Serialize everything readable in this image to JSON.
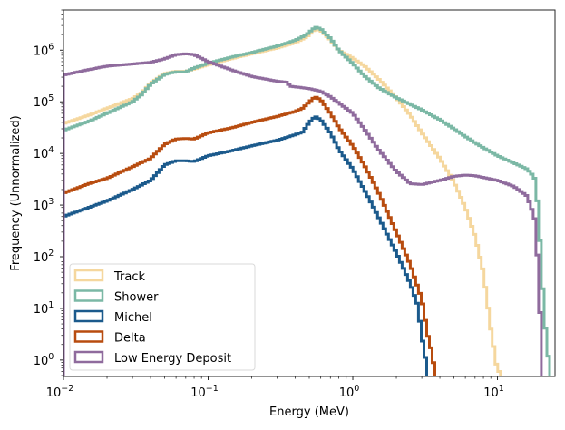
{
  "chart_data": {
    "type": "line",
    "subtype": "step-histogram",
    "title": "",
    "xlabel": "Energy (MeV)",
    "ylabel": "Frequency (Unnormalized)",
    "xscale": "log",
    "yscale": "log",
    "xlim": [
      0.01,
      25
    ],
    "ylim": [
      0.48,
      6000000
    ],
    "x_ticks": [
      {
        "value": 0.01,
        "label_base": "10",
        "label_exp": "−2"
      },
      {
        "value": 0.1,
        "label_base": "10",
        "label_exp": "−1"
      },
      {
        "value": 1,
        "label_base": "10",
        "label_exp": "0"
      },
      {
        "value": 10,
        "label_base": "10",
        "label_exp": "1"
      }
    ],
    "y_ticks": [
      {
        "value": 1,
        "label_base": "10",
        "label_exp": "0"
      },
      {
        "value": 10,
        "label_base": "10",
        "label_exp": "1"
      },
      {
        "value": 100,
        "label_base": "10",
        "label_exp": "2"
      },
      {
        "value": 1000,
        "label_base": "10",
        "label_exp": "3"
      },
      {
        "value": 10000,
        "label_base": "10",
        "label_exp": "4"
      },
      {
        "value": 100000,
        "label_base": "10",
        "label_exp": "5"
      },
      {
        "value": 1000000,
        "label_base": "10",
        "label_exp": "6"
      }
    ],
    "grid": false,
    "legend_position": "lower-left",
    "series": [
      {
        "name": "Track",
        "color": "#f5d79e",
        "points": [
          [
            0.01,
            38000
          ],
          [
            0.015,
            55000
          ],
          [
            0.02,
            75000
          ],
          [
            0.03,
            115000
          ],
          [
            0.035,
            150000
          ],
          [
            0.04,
            230000
          ],
          [
            0.05,
            350000
          ],
          [
            0.06,
            390000
          ],
          [
            0.07,
            390000
          ],
          [
            0.08,
            430000
          ],
          [
            0.1,
            520000
          ],
          [
            0.15,
            700000
          ],
          [
            0.2,
            850000
          ],
          [
            0.3,
            1100000
          ],
          [
            0.4,
            1400000
          ],
          [
            0.48,
            1800000
          ],
          [
            0.55,
            2600000
          ],
          [
            0.6,
            2400000
          ],
          [
            0.7,
            1600000
          ],
          [
            0.8,
            1000000
          ],
          [
            1.0,
            700000
          ],
          [
            1.2,
            500000
          ],
          [
            1.5,
            280000
          ],
          [
            2.0,
            120000
          ],
          [
            2.5,
            55000
          ],
          [
            3.0,
            25000
          ],
          [
            4.0,
            8000
          ],
          [
            5.0,
            2800
          ],
          [
            6.0,
            900
          ],
          [
            7.0,
            250
          ],
          [
            8.0,
            50
          ],
          [
            9.0,
            4
          ],
          [
            10.0,
            0.6
          ],
          [
            10.5,
            0.6
          ]
        ]
      },
      {
        "name": "Shower",
        "color": "#7bb8a5",
        "points": [
          [
            0.01,
            28000
          ],
          [
            0.015,
            42000
          ],
          [
            0.02,
            60000
          ],
          [
            0.03,
            100000
          ],
          [
            0.035,
            140000
          ],
          [
            0.04,
            220000
          ],
          [
            0.05,
            340000
          ],
          [
            0.06,
            380000
          ],
          [
            0.07,
            380000
          ],
          [
            0.08,
            450000
          ],
          [
            0.1,
            560000
          ],
          [
            0.15,
            750000
          ],
          [
            0.2,
            900000
          ],
          [
            0.3,
            1200000
          ],
          [
            0.4,
            1550000
          ],
          [
            0.48,
            2000000
          ],
          [
            0.55,
            2800000
          ],
          [
            0.6,
            2600000
          ],
          [
            0.7,
            1700000
          ],
          [
            0.8,
            1000000
          ],
          [
            1.0,
            550000
          ],
          [
            1.2,
            320000
          ],
          [
            1.5,
            190000
          ],
          [
            2.0,
            120000
          ],
          [
            3.0,
            70000
          ],
          [
            4.0,
            45000
          ],
          [
            5.0,
            30000
          ],
          [
            7.0,
            16000
          ],
          [
            10.0,
            9000
          ],
          [
            13.0,
            6500
          ],
          [
            16.0,
            5000
          ],
          [
            18.0,
            3500
          ],
          [
            19.0,
            1000
          ],
          [
            20.0,
            100
          ],
          [
            21.0,
            8
          ],
          [
            22.0,
            2
          ],
          [
            23.0,
            0.6
          ]
        ]
      },
      {
        "name": "Michel",
        "color": "#1b5a8c",
        "points": [
          [
            0.01,
            600
          ],
          [
            0.015,
            900
          ],
          [
            0.02,
            1200
          ],
          [
            0.03,
            2000
          ],
          [
            0.04,
            3000
          ],
          [
            0.05,
            6000
          ],
          [
            0.06,
            7200
          ],
          [
            0.07,
            7200
          ],
          [
            0.08,
            7000
          ],
          [
            0.1,
            9000
          ],
          [
            0.15,
            11500
          ],
          [
            0.2,
            14000
          ],
          [
            0.3,
            18000
          ],
          [
            0.4,
            23000
          ],
          [
            0.45,
            26000
          ],
          [
            0.5,
            40000
          ],
          [
            0.55,
            52000
          ],
          [
            0.6,
            45000
          ],
          [
            0.7,
            25000
          ],
          [
            0.8,
            12000
          ],
          [
            1.0,
            5000
          ],
          [
            1.2,
            2000
          ],
          [
            1.5,
            600
          ],
          [
            2.0,
            120
          ],
          [
            2.5,
            30
          ],
          [
            2.8,
            12
          ],
          [
            3.0,
            3
          ],
          [
            3.1,
            1.5
          ],
          [
            3.2,
            1
          ],
          [
            3.3,
            0.6
          ]
        ]
      },
      {
        "name": "Delta",
        "color": "#b84c0f",
        "points": [
          [
            0.01,
            1700
          ],
          [
            0.015,
            2600
          ],
          [
            0.02,
            3300
          ],
          [
            0.03,
            5500
          ],
          [
            0.04,
            8000
          ],
          [
            0.05,
            15000
          ],
          [
            0.06,
            19000
          ],
          [
            0.07,
            19500
          ],
          [
            0.08,
            19000
          ],
          [
            0.1,
            25000
          ],
          [
            0.15,
            32000
          ],
          [
            0.2,
            40000
          ],
          [
            0.3,
            52000
          ],
          [
            0.4,
            65000
          ],
          [
            0.45,
            75000
          ],
          [
            0.5,
            100000
          ],
          [
            0.55,
            125000
          ],
          [
            0.6,
            110000
          ],
          [
            0.7,
            60000
          ],
          [
            0.8,
            32000
          ],
          [
            1.0,
            14000
          ],
          [
            1.2,
            6000
          ],
          [
            1.5,
            1800
          ],
          [
            2.0,
            300
          ],
          [
            2.5,
            70
          ],
          [
            3.0,
            15
          ],
          [
            3.3,
            3
          ],
          [
            3.5,
            1.5
          ],
          [
            3.7,
            0.6
          ]
        ]
      },
      {
        "name": "Low Energy Deposit",
        "color": "#8f6b9d",
        "points": [
          [
            0.01,
            330000
          ],
          [
            0.015,
            420000
          ],
          [
            0.02,
            490000
          ],
          [
            0.03,
            540000
          ],
          [
            0.04,
            580000
          ],
          [
            0.05,
            680000
          ],
          [
            0.06,
            820000
          ],
          [
            0.07,
            850000
          ],
          [
            0.08,
            820000
          ],
          [
            0.1,
            600000
          ],
          [
            0.15,
            400000
          ],
          [
            0.2,
            310000
          ],
          [
            0.3,
            250000
          ],
          [
            0.35,
            240000
          ],
          [
            0.37,
            200000
          ],
          [
            0.4,
            195000
          ],
          [
            0.5,
            180000
          ],
          [
            0.6,
            160000
          ],
          [
            0.7,
            125000
          ],
          [
            0.8,
            95000
          ],
          [
            1.0,
            60000
          ],
          [
            1.2,
            30000
          ],
          [
            1.5,
            12000
          ],
          [
            2.0,
            4500
          ],
          [
            2.5,
            2600
          ],
          [
            3.0,
            2500
          ],
          [
            4.0,
            3000
          ],
          [
            5.0,
            3600
          ],
          [
            6.0,
            3800
          ],
          [
            7.0,
            3700
          ],
          [
            10.0,
            3000
          ],
          [
            13.0,
            2300
          ],
          [
            16.0,
            1500
          ],
          [
            18.0,
            600
          ],
          [
            19.0,
            80
          ],
          [
            20.0,
            3
          ],
          [
            20.5,
            0.6
          ]
        ]
      }
    ]
  }
}
